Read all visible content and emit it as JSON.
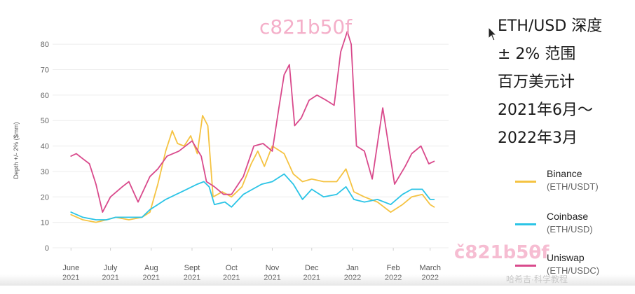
{
  "title_lines": [
    "ETH/USD 深度",
    "± 2% 范围",
    "百万美元计",
    "2021年6月～",
    "2022年3月"
  ],
  "watermarks": [
    "c821b50f",
    "č821b5θf",
    "哈希吉·科学教程"
  ],
  "chart_data": {
    "type": "line",
    "ylabel": "Depth +/- 2% ($mm)",
    "ylim": [
      0,
      85
    ],
    "yticks": [
      0,
      10,
      20,
      30,
      40,
      50,
      60,
      70,
      80
    ],
    "x_range": [
      "2021-05-18",
      "2022-03-15"
    ],
    "x_ticks": [
      {
        "date": "2021-06-01",
        "label": [
          "June",
          "2021"
        ]
      },
      {
        "date": "2021-07-01",
        "label": [
          "July",
          "2021"
        ]
      },
      {
        "date": "2021-08-01",
        "label": [
          "Aug",
          "2021"
        ]
      },
      {
        "date": "2021-09-01",
        "label": [
          "Sept",
          "2021"
        ]
      },
      {
        "date": "2021-10-01",
        "label": [
          "Oct",
          "2021"
        ]
      },
      {
        "date": "2021-11-01",
        "label": [
          "Nov",
          "2021"
        ]
      },
      {
        "date": "2021-12-01",
        "label": [
          "Dec",
          "2021"
        ]
      },
      {
        "date": "2022-01-01",
        "label": [
          "Jan",
          "2022"
        ]
      },
      {
        "date": "2022-02-01",
        "label": [
          "Feb",
          "2022"
        ]
      },
      {
        "date": "2022-03-01",
        "label": [
          "March",
          "2022"
        ]
      }
    ],
    "grid": true,
    "legend": "right",
    "series": [
      {
        "name": "Binance",
        "pair": "(ETH/USDT)",
        "color": "#f5c342",
        "points": [
          [
            "2021-06-01",
            13
          ],
          [
            "2021-06-10",
            11
          ],
          [
            "2021-06-20",
            10
          ],
          [
            "2021-06-28",
            11
          ],
          [
            "2021-07-05",
            12
          ],
          [
            "2021-07-15",
            11
          ],
          [
            "2021-07-25",
            12
          ],
          [
            "2021-07-31",
            14
          ],
          [
            "2021-08-06",
            25
          ],
          [
            "2021-08-12",
            38
          ],
          [
            "2021-08-17",
            46
          ],
          [
            "2021-08-21",
            41
          ],
          [
            "2021-08-26",
            40
          ],
          [
            "2021-08-31",
            44
          ],
          [
            "2021-09-05",
            37
          ],
          [
            "2021-09-09",
            52
          ],
          [
            "2021-09-13",
            48
          ],
          [
            "2021-09-17",
            20
          ],
          [
            "2021-09-24",
            22
          ],
          [
            "2021-10-01",
            20
          ],
          [
            "2021-10-09",
            24
          ],
          [
            "2021-10-16",
            33
          ],
          [
            "2021-10-21",
            38
          ],
          [
            "2021-10-26",
            32
          ],
          [
            "2021-11-01",
            40
          ],
          [
            "2021-11-10",
            37
          ],
          [
            "2021-11-17",
            29
          ],
          [
            "2021-11-24",
            26
          ],
          [
            "2021-12-01",
            27
          ],
          [
            "2021-12-10",
            26
          ],
          [
            "2021-12-20",
            26
          ],
          [
            "2021-12-27",
            31
          ],
          [
            "2022-01-02",
            22
          ],
          [
            "2022-01-10",
            20
          ],
          [
            "2022-01-20",
            18
          ],
          [
            "2022-01-30",
            14
          ],
          [
            "2022-02-08",
            17
          ],
          [
            "2022-02-15",
            20
          ],
          [
            "2022-02-23",
            21
          ],
          [
            "2022-03-01",
            17
          ],
          [
            "2022-03-04",
            16
          ]
        ]
      },
      {
        "name": "Coinbase",
        "pair": "(ETH/USD)",
        "color": "#2bc4e6",
        "points": [
          [
            "2021-06-01",
            14
          ],
          [
            "2021-06-10",
            12
          ],
          [
            "2021-06-20",
            11
          ],
          [
            "2021-06-28",
            11
          ],
          [
            "2021-07-05",
            12
          ],
          [
            "2021-07-15",
            12
          ],
          [
            "2021-07-25",
            12
          ],
          [
            "2021-07-31",
            15
          ],
          [
            "2021-08-06",
            17
          ],
          [
            "2021-08-12",
            19
          ],
          [
            "2021-08-20",
            21
          ],
          [
            "2021-08-28",
            23
          ],
          [
            "2021-09-05",
            25
          ],
          [
            "2021-09-10",
            26
          ],
          [
            "2021-09-14",
            24
          ],
          [
            "2021-09-18",
            17
          ],
          [
            "2021-09-26",
            18
          ],
          [
            "2021-10-01",
            16
          ],
          [
            "2021-10-10",
            21
          ],
          [
            "2021-10-17",
            23
          ],
          [
            "2021-10-24",
            25
          ],
          [
            "2021-11-01",
            26
          ],
          [
            "2021-11-10",
            29
          ],
          [
            "2021-11-17",
            25
          ],
          [
            "2021-11-24",
            19
          ],
          [
            "2021-12-01",
            23
          ],
          [
            "2021-12-10",
            20
          ],
          [
            "2021-12-20",
            21
          ],
          [
            "2021-12-27",
            24
          ],
          [
            "2022-01-02",
            19
          ],
          [
            "2022-01-10",
            18
          ],
          [
            "2022-01-20",
            19
          ],
          [
            "2022-01-30",
            17
          ],
          [
            "2022-02-08",
            21
          ],
          [
            "2022-02-15",
            23
          ],
          [
            "2022-02-23",
            23
          ],
          [
            "2022-03-01",
            19
          ],
          [
            "2022-03-04",
            19
          ]
        ]
      },
      {
        "name": "Uniswap",
        "pair": "(ETH/USDC)",
        "color": "#d94a8c",
        "points": [
          [
            "2021-06-01",
            36
          ],
          [
            "2021-06-05",
            37
          ],
          [
            "2021-06-10",
            35
          ],
          [
            "2021-06-15",
            33
          ],
          [
            "2021-06-20",
            25
          ],
          [
            "2021-06-25",
            14
          ],
          [
            "2021-07-01",
            20
          ],
          [
            "2021-07-10",
            24
          ],
          [
            "2021-07-15",
            26
          ],
          [
            "2021-07-22",
            18
          ],
          [
            "2021-07-31",
            28
          ],
          [
            "2021-08-06",
            31
          ],
          [
            "2021-08-13",
            36
          ],
          [
            "2021-08-22",
            38
          ],
          [
            "2021-09-01",
            42
          ],
          [
            "2021-09-08",
            36
          ],
          [
            "2021-09-12",
            26
          ],
          [
            "2021-09-18",
            24
          ],
          [
            "2021-09-25",
            21
          ],
          [
            "2021-10-01",
            21
          ],
          [
            "2021-10-10",
            28
          ],
          [
            "2021-10-18",
            40
          ],
          [
            "2021-10-25",
            41
          ],
          [
            "2021-11-01",
            38
          ],
          [
            "2021-11-06",
            55
          ],
          [
            "2021-11-10",
            68
          ],
          [
            "2021-11-14",
            72
          ],
          [
            "2021-11-18",
            48
          ],
          [
            "2021-11-23",
            51
          ],
          [
            "2021-11-29",
            58
          ],
          [
            "2021-12-05",
            60
          ],
          [
            "2021-12-12",
            58
          ],
          [
            "2021-12-18",
            56
          ],
          [
            "2021-12-23",
            77
          ],
          [
            "2021-12-28",
            85
          ],
          [
            "2021-12-31",
            80
          ],
          [
            "2022-01-04",
            40
          ],
          [
            "2022-01-10",
            38
          ],
          [
            "2022-01-16",
            27
          ],
          [
            "2022-01-24",
            55
          ],
          [
            "2022-02-02",
            25
          ],
          [
            "2022-02-10",
            32
          ],
          [
            "2022-02-15",
            37
          ],
          [
            "2022-02-22",
            40
          ],
          [
            "2022-02-28",
            33
          ],
          [
            "2022-03-04",
            34
          ]
        ]
      }
    ]
  }
}
